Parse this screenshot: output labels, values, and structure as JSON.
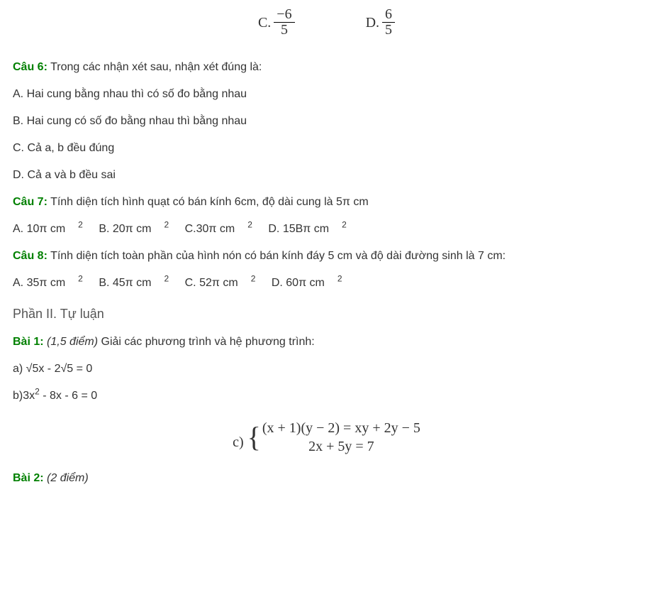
{
  "top_options": {
    "c_label": "C.",
    "c_num": "−6",
    "c_den": "5",
    "d_label": "D.",
    "d_num": "6",
    "d_den": "5"
  },
  "q6": {
    "label": "Câu 6:",
    "text": " Trong các nhận xét sau, nhận xét đúng là:",
    "a": "A. Hai cung bằng nhau thì có số đo bằng nhau",
    "b": "B. Hai cung có số đo bằng nhau thì bằng nhau",
    "c": "C. Cả a, b đều đúng",
    "d": "D. Cả a và b đều sai"
  },
  "q7": {
    "label": "Câu 7:",
    "text": " Tính diện tích hình quạt có bán kính 6cm, độ dài cung là 5π cm",
    "a": "A. 10π cm",
    "b": "B. 20π cm",
    "c": "C.30π cm",
    "d": "D. 15Bπ cm",
    "sup": "2"
  },
  "q8": {
    "label": "Câu 8:",
    "text": " Tính diện tích toàn phần của hình nón có bán kính đáy 5 cm và độ dài đường sinh là 7 cm:",
    "a": "A. 35π cm",
    "b": "B. 45π cm",
    "c": "C. 52π cm",
    "d": "D. 60π cm",
    "sup": "2"
  },
  "section2": "Phần II. Tự luận",
  "bai1": {
    "label": "Bài 1:",
    "pts": " (1,5 điểm)",
    "text": " Giải các phương trình và hệ phương trình:",
    "a": "a) √5x - 2√5 = 0",
    "b_prefix": "b)3x",
    "b_sup": "2",
    "b_suffix": " - 8x - 6 = 0",
    "c_label": "c)",
    "c_line1": "(x + 1)(y − 2) = xy + 2y − 5",
    "c_line2": "2x + 5y = 7"
  },
  "bai2": {
    "label": "Bài 2:",
    "pts": " (2 điểm)"
  }
}
